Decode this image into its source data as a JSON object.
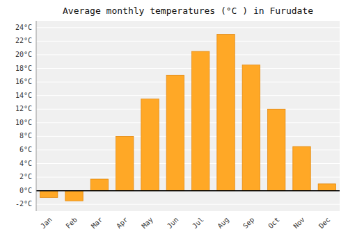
{
  "chart_data": {
    "type": "bar",
    "title": "Average monthly temperatures (°C ) in Furudate",
    "categories": [
      "Jan",
      "Feb",
      "Mar",
      "Apr",
      "May",
      "Jun",
      "Jul",
      "Aug",
      "Sep",
      "Oct",
      "Nov",
      "Dec"
    ],
    "values": [
      -1.0,
      -1.5,
      1.7,
      8.0,
      13.5,
      17.0,
      20.5,
      23.0,
      18.5,
      12.0,
      6.5,
      1.0
    ],
    "color": "#FFA826",
    "ylim": [
      -3,
      25
    ],
    "yticks": [
      {
        "value": -2,
        "label": "-2°C"
      },
      {
        "value": 0,
        "label": "0°C"
      },
      {
        "value": 2,
        "label": "2°C"
      },
      {
        "value": 4,
        "label": "4°C"
      },
      {
        "value": 6,
        "label": "6°C"
      },
      {
        "value": 8,
        "label": "8°C"
      },
      {
        "value": 10,
        "label": "10°C"
      },
      {
        "value": 12,
        "label": "12°C"
      },
      {
        "value": 14,
        "label": "14°C"
      },
      {
        "value": 16,
        "label": "16°C"
      },
      {
        "value": 18,
        "label": "18°C"
      },
      {
        "value": 20,
        "label": "20°C"
      },
      {
        "value": 22,
        "label": "22°C"
      },
      {
        "value": 24,
        "label": "24°C"
      }
    ],
    "grid": true
  }
}
